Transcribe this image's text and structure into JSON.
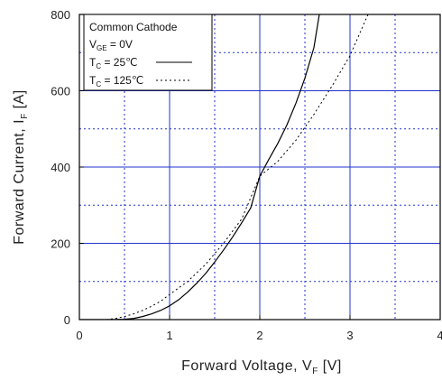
{
  "chart_data": {
    "type": "line",
    "xlabel": "Forward  Voltage,  V",
    "xlabel_sub": "F",
    "xlabel_unit": " [V]",
    "ylabel": "Forward  Current,  I",
    "ylabel_sub": "F",
    "ylabel_unit": " [A]",
    "xlim": [
      0,
      4
    ],
    "ylim": [
      0,
      800
    ],
    "xticks": [
      0,
      1,
      2,
      3,
      4
    ],
    "xtick_labels": [
      "0",
      "1",
      "2",
      "3",
      "4"
    ],
    "yticks": [
      0,
      200,
      400,
      600,
      800
    ],
    "ytick_labels": [
      "0",
      "200",
      "400",
      "600",
      "800"
    ],
    "major_grid": {
      "x": [
        1,
        2,
        3
      ],
      "y": [
        200,
        400,
        600
      ],
      "color": "#2233cc",
      "style": "solid"
    },
    "minor_grid": {
      "x": [
        0.5,
        1.5,
        2.5,
        3.5
      ],
      "y": [
        100,
        300,
        500,
        700
      ],
      "color": "#2233cc",
      "style": "dotted"
    },
    "legend": {
      "position": "top-left",
      "title": "Common Cathode",
      "condition": {
        "main": "V",
        "sub": "GE",
        "rest": " = 0V"
      },
      "entries": [
        {
          "main": "T",
          "sub": "C",
          "rest": " =   25℃",
          "style": "solid"
        },
        {
          "main": "T",
          "sub": "C",
          "rest": " = 125℃",
          "style": "dotted"
        }
      ]
    },
    "series": [
      {
        "style": "solid",
        "color": "#000000",
        "x": [
          0,
          0.3,
          0.5,
          0.6,
          0.7,
          0.8,
          0.9,
          1.0,
          1.1,
          1.2,
          1.3,
          1.4,
          1.5,
          1.6,
          1.7,
          1.8,
          1.9,
          2.0,
          2.1,
          2.2,
          2.3,
          2.4,
          2.5,
          2.6,
          2.66
        ],
        "y": [
          0,
          0,
          1,
          3,
          8,
          15,
          24,
          36,
          52,
          72,
          95,
          121,
          151,
          183,
          217,
          254,
          293,
          376,
          420,
          462,
          510,
          567,
          633,
          713,
          800
        ]
      },
      {
        "style": "dotted",
        "color": "#000000",
        "x": [
          0,
          0.3,
          0.4,
          0.5,
          0.6,
          0.7,
          0.8,
          0.9,
          1.0,
          1.2,
          1.4,
          1.6,
          1.8,
          2.0,
          2.2,
          2.4,
          2.6,
          2.8,
          3.0,
          3.2
        ],
        "y": [
          0,
          0,
          3,
          8,
          15,
          24,
          35,
          48,
          66,
          100,
          145,
          201,
          264,
          376,
          415,
          470,
          538,
          612,
          692,
          800
        ]
      }
    ]
  }
}
